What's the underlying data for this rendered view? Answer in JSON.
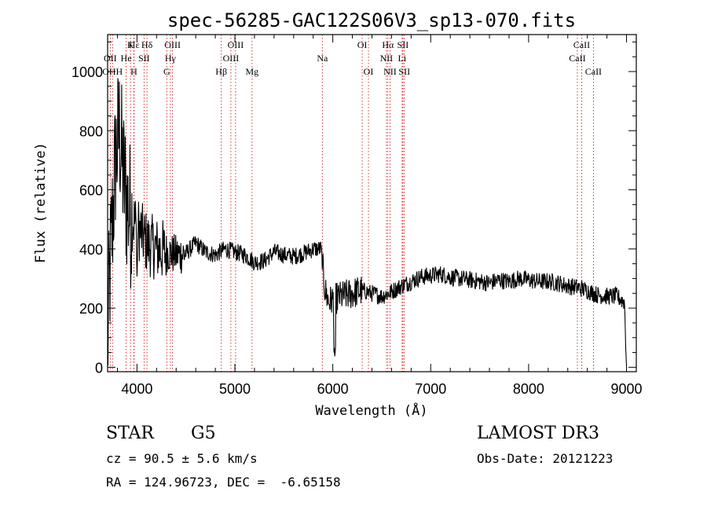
{
  "chart_data": {
    "type": "line",
    "title": "spec-56285-GAC122S06V3_sp13-070.fits",
    "xlabel": "Wavelength (Å)",
    "ylabel": "Flux (relative)",
    "xlim": [
      3700,
      9100
    ],
    "ylim": [
      -15,
      1125
    ],
    "xticks": [
      4000,
      5000,
      6000,
      7000,
      8000,
      9000
    ],
    "yticks": [
      0,
      200,
      400,
      600,
      800,
      1000
    ],
    "grid": false,
    "series": [
      {
        "name": "flux",
        "anchors_x": [
          3700,
          3720,
          3750,
          3780,
          3820,
          3860,
          3900,
          3950,
          4000,
          4100,
          4200,
          4300,
          4400,
          4500,
          4600,
          4700,
          4800,
          4900,
          5000,
          5100,
          5200,
          5300,
          5400,
          5500,
          5600,
          5700,
          5800,
          5880,
          5920,
          5960,
          6000,
          6100,
          6200,
          6300,
          6400,
          6500,
          6600,
          6700,
          6800,
          6900,
          7000,
          7100,
          7200,
          7300,
          7400,
          7500,
          7600,
          7700,
          7800,
          7900,
          8000,
          8100,
          8200,
          8300,
          8400,
          8500,
          8600,
          8700,
          8800,
          8900,
          8980,
          9000
        ],
        "anchors_y": [
          60,
          300,
          500,
          700,
          800,
          650,
          550,
          500,
          480,
          420,
          400,
          390,
          380,
          385,
          420,
          390,
          380,
          400,
          390,
          380,
          355,
          360,
          390,
          380,
          375,
          385,
          400,
          400,
          260,
          220,
          230,
          240,
          250,
          260,
          250,
          240,
          255,
          275,
          290,
          305,
          310,
          315,
          305,
          300,
          295,
          290,
          285,
          295,
          290,
          300,
          295,
          290,
          290,
          285,
          275,
          270,
          260,
          245,
          240,
          240,
          220,
          0
        ],
        "noise_level_y": 30
      }
    ],
    "line_markers": [
      {
        "label": "Hε",
        "x": 3970,
        "row": 1
      },
      {
        "label": "K",
        "x": 3934,
        "row": 1
      },
      {
        "label": "Hδ",
        "x": 4102,
        "row": 1
      },
      {
        "label": "OIII",
        "x": 4363,
        "row": 1
      },
      {
        "label": "OIII",
        "x": 5007,
        "row": 1
      },
      {
        "label": "OI",
        "x": 6300,
        "row": 1
      },
      {
        "label": "Hα",
        "x": 6563,
        "row": 1
      },
      {
        "label": "SII",
        "x": 6716,
        "row": 1
      },
      {
        "label": "CaII",
        "x": 8542,
        "row": 1
      },
      {
        "label": "OII",
        "x": 3727,
        "row": 2
      },
      {
        "label": "He",
        "x": 3889,
        "row": 2
      },
      {
        "label": "SII",
        "x": 4072,
        "row": 2
      },
      {
        "label": "Hγ",
        "x": 4341,
        "row": 2
      },
      {
        "label": "OIII",
        "x": 4959,
        "row": 2
      },
      {
        "label": "NII",
        "x": 6548,
        "row": 2
      },
      {
        "label": "Li",
        "x": 6708,
        "row": 2
      },
      {
        "label": "CaII",
        "x": 8498,
        "row": 2
      },
      {
        "label": "OHH",
        "x": 3750,
        "row": 3
      },
      {
        "label": "H",
        "x": 3968,
        "row": 3
      },
      {
        "label": "G",
        "x": 4304,
        "row": 3
      },
      {
        "label": "Hβ",
        "x": 4861,
        "row": 3
      },
      {
        "label": "Mg",
        "x": 5175,
        "row": 3
      },
      {
        "label": "Na",
        "x": 5893,
        "row": 2
      },
      {
        "label": "OI",
        "x": 6364,
        "row": 3
      },
      {
        "label": "NII",
        "x": 6584,
        "row": 3
      },
      {
        "label": "SII",
        "x": 6731,
        "row": 3
      },
      {
        "label": "CaII",
        "x": 8662,
        "row": 3
      }
    ]
  },
  "info": {
    "object_class": "STAR",
    "subclass": "G5",
    "survey": "LAMOST DR3",
    "redshift": "cz = 90.5 ± 5.6 km/s",
    "obs_date": "Obs-Date: 20121223",
    "coords": "RA = 124.96723, DEC =  -6.65158"
  },
  "colors": {
    "line": "#000000",
    "marker": "#cc0000",
    "background": "#ffffff"
  }
}
